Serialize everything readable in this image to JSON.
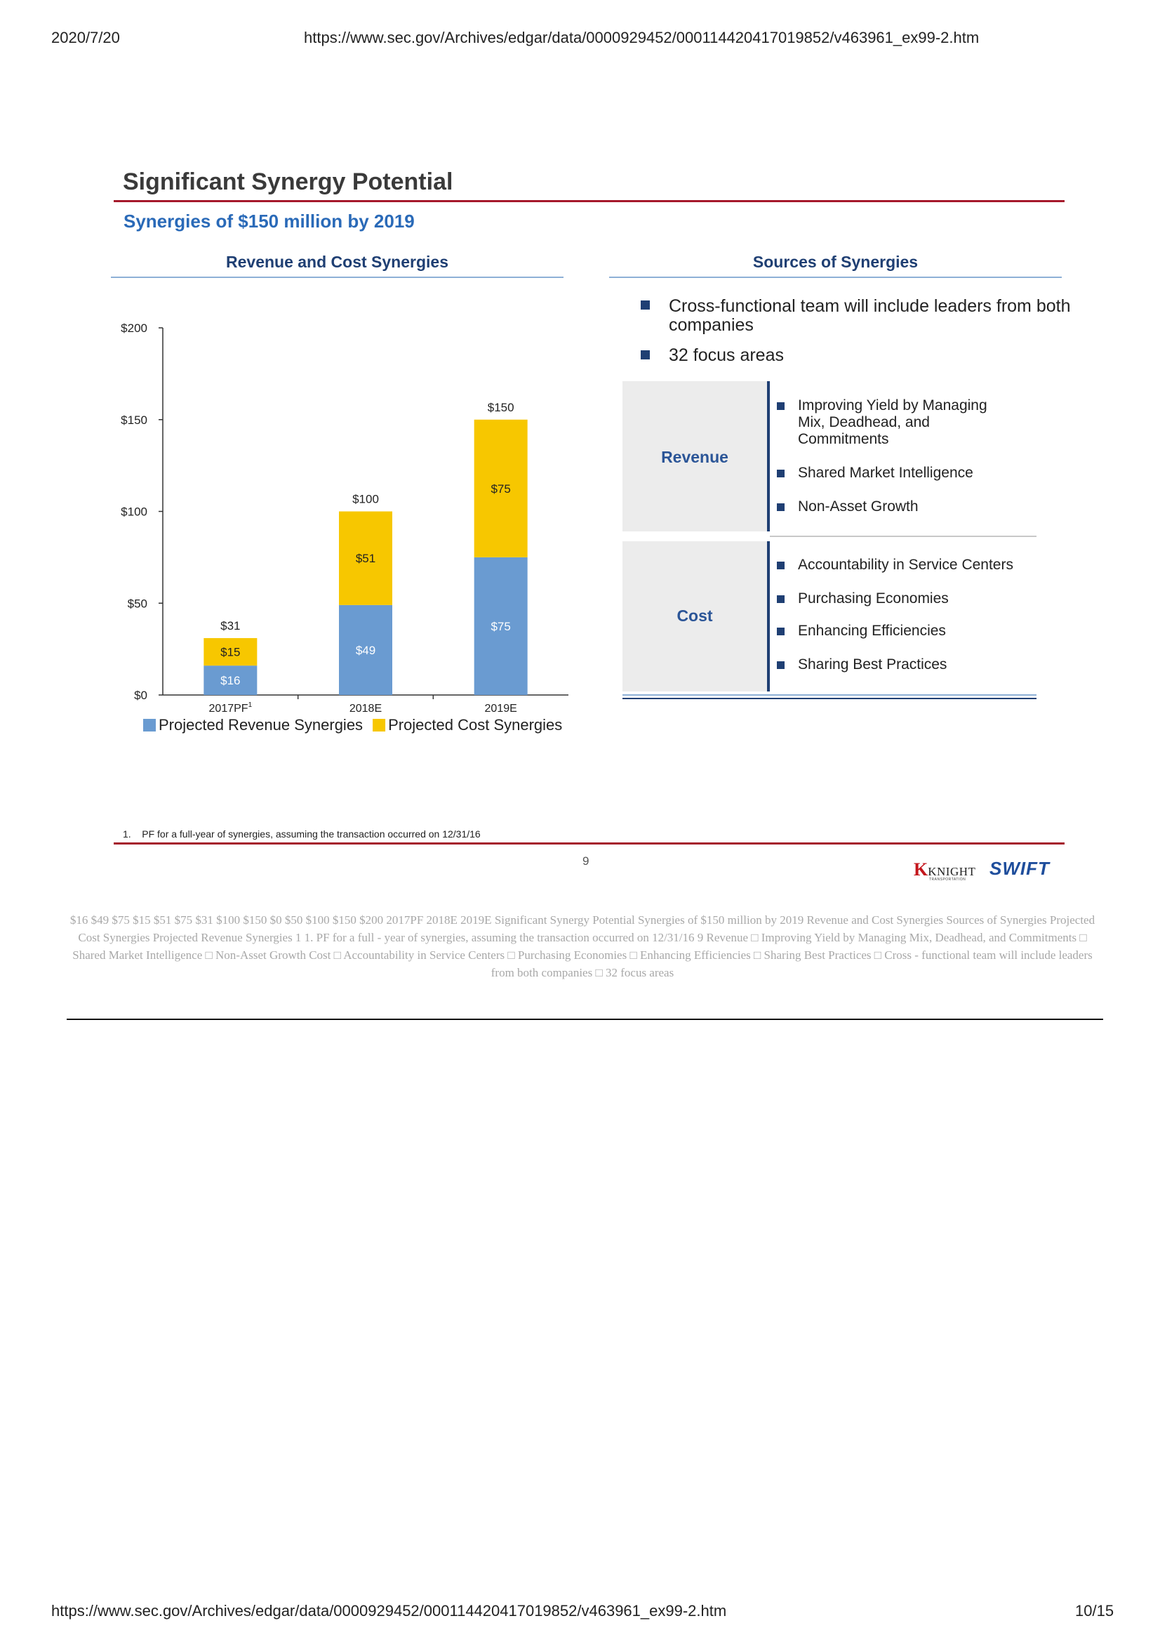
{
  "browser": {
    "date": "2020/7/20",
    "url_top": "https://www.sec.gov/Archives/edgar/data/0000929452/000114420417019852/v463961_ex99-2.htm",
    "url_bottom": "https://www.sec.gov/Archives/edgar/data/0000929452/000114420417019852/v463961_ex99-2.htm",
    "page_count": "10/15"
  },
  "slide": {
    "title": "Significant Synergy Potential",
    "subtitle": "Synergies of $150 million by 2019",
    "left_heading": "Revenue and Cost Synergies",
    "right_heading": "Sources of Synergies",
    "bullets": [
      "Cross-functional team will include leaders from both",
      "companies",
      "32 focus areas"
    ],
    "revenue_box": {
      "label": "Revenue",
      "items": [
        [
          "Improving Yield by Managing",
          "Mix, Deadhead, and",
          "Commitments"
        ],
        [
          "Shared Market Intelligence"
        ],
        [
          "Non-Asset Growth"
        ]
      ]
    },
    "cost_box": {
      "label": "Cost",
      "items": [
        "Accountability in Service Centers",
        "Purchasing Economies",
        "Enhancing Efficiencies",
        "Sharing Best Practices"
      ]
    },
    "footnote": "1.    PF for a full-year of synergies, assuming the transaction occurred on 12/31/16",
    "page_number": "9",
    "logo": {
      "knight": "KNIGHT",
      "knight_sub": "TRANSPORTATION",
      "swift": "SWIFT",
      "k_color": "#c4161c",
      "swift_color": "#1f4e9c"
    }
  },
  "chart_data": {
    "type": "bar",
    "stacked": true,
    "categories": [
      "2017PF",
      "2018E",
      "2019E"
    ],
    "category_superscripts": [
      "1",
      "",
      ""
    ],
    "series": [
      {
        "name": "Projected Revenue Synergies",
        "values": [
          16,
          49,
          75
        ],
        "labels": [
          "$16",
          "$49",
          "$75"
        ],
        "color": "#6a9bd1",
        "label_color": "#ffffff"
      },
      {
        "name": "Projected Cost Synergies",
        "values": [
          15,
          51,
          75
        ],
        "labels": [
          "$15",
          "$51",
          "$75"
        ],
        "color": "#f7c700",
        "label_color": "#222222"
      }
    ],
    "totals": [
      "$31",
      "$100",
      "$150"
    ],
    "y_ticks": [
      0,
      50,
      100,
      150,
      200
    ],
    "y_tick_labels": [
      "$0",
      "$50",
      "$100",
      "$150",
      "$200"
    ],
    "ylim": [
      0,
      200
    ],
    "legend_position": "bottom",
    "grid": false
  },
  "ocr_text": "$16 $49 $75 $15 $51 $75 $31 $100 $150 $0 $50 $100 $150 $200 2017PF 2018E 2019E Significant Synergy Potential Synergies of $150 million by 2019 Revenue and Cost Synergies Sources of Synergies Projected Cost Synergies Projected Revenue Synergies 1 1. PF for a full - year of synergies, assuming the transaction occurred on 12/31/16 9 Revenue □ Improving Yield by Managing Mix, Deadhead, and Commitments □ Shared Market Intelligence □ Non-Asset Growth Cost □ Accountability in Service Centers □ Purchasing Economies □ Enhancing Efficiencies □ Sharing Best Practices □ Cross - functional team will include leaders from both companies □ 32 focus areas"
}
